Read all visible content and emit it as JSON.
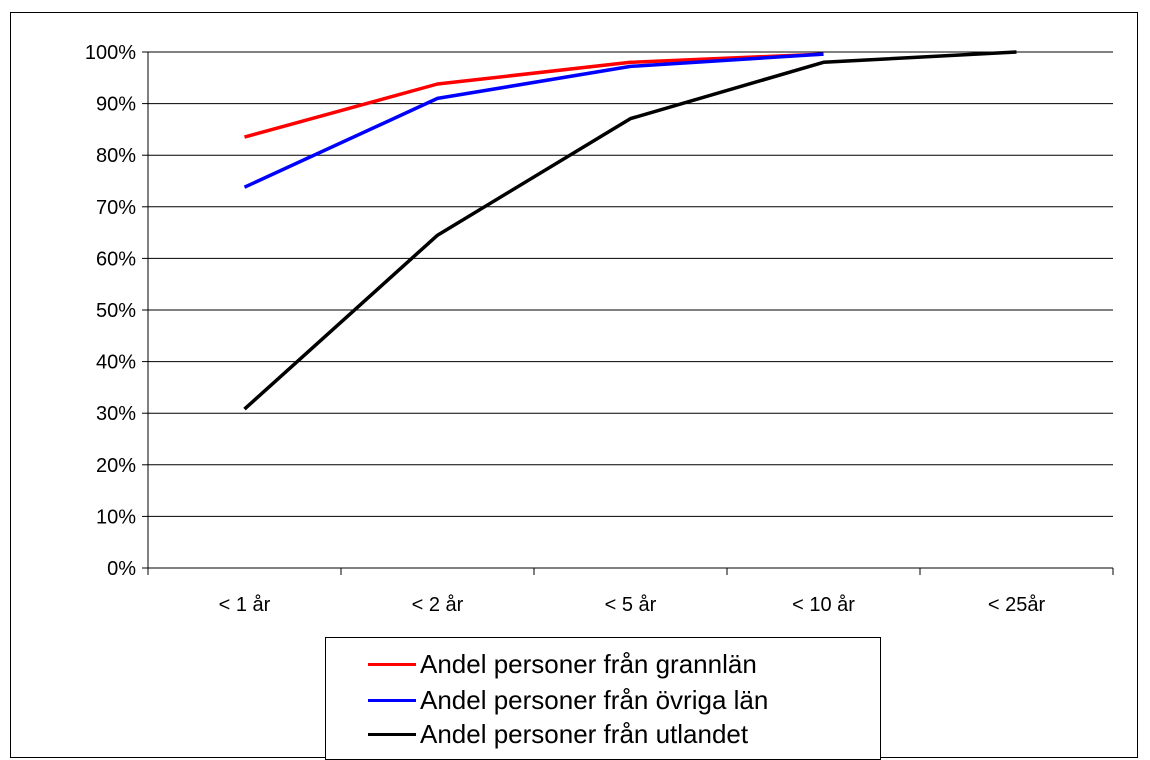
{
  "chart_data": {
    "type": "line",
    "title": "",
    "xlabel": "",
    "ylabel": "",
    "categories": [
      "< 1 år",
      "< 2 år",
      "< 5 år",
      "< 10 år",
      "< 25år"
    ],
    "ylim": [
      0,
      100
    ],
    "yticks": [
      "0%",
      "10%",
      "20%",
      "30%",
      "40%",
      "50%",
      "60%",
      "70%",
      "80%",
      "90%",
      "100%"
    ],
    "grid": "horizontal",
    "legend_position": "bottom",
    "series": [
      {
        "name": "Andel personer  från grannlän",
        "color": "#ff0000",
        "values": [
          83.5,
          93.8,
          98.0,
          99.6,
          null
        ]
      },
      {
        "name": "Andel personer  från övriga län",
        "color": "#0000ff",
        "values": [
          73.8,
          91.0,
          97.2,
          99.6,
          null
        ]
      },
      {
        "name": "Andel personer  från utlandet",
        "color": "#000000",
        "values": [
          30.8,
          64.5,
          87.1,
          98.0,
          100.0
        ]
      }
    ]
  }
}
